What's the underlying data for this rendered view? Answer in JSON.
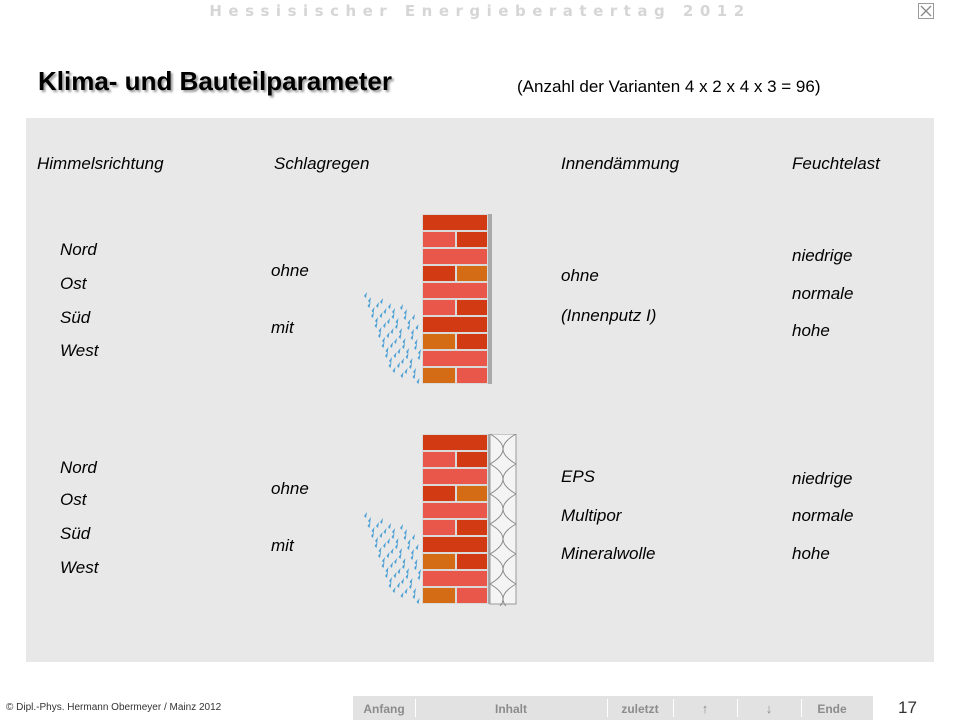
{
  "header": {
    "event_title": "Hessisischer Energieberatertag 2012",
    "close_icon": "close-x-icon"
  },
  "slide": {
    "title": "Klima- und Bauteilparameter",
    "subtitle": "(Anzahl der Varianten 4 x 2 x 4 x 3 = 96)"
  },
  "columns": {
    "himmelsrichtung": "Himmelsrichtung",
    "schlagregen": "Schlagregen",
    "innendaemmung": "Innendämmung",
    "feuchtelast": "Feuchtelast"
  },
  "group_top": {
    "directions": [
      "Nord",
      "Ost",
      "Süd",
      "West"
    ],
    "rain": [
      "ohne",
      "mit"
    ],
    "insulation": [
      "ohne",
      "(Innenputz I)"
    ],
    "moisture": [
      "niedrige",
      "normale",
      "hohe"
    ]
  },
  "group_bottom": {
    "directions": [
      "Nord",
      "Ost",
      "Süd",
      "West"
    ],
    "rain": [
      "ohne",
      "mit"
    ],
    "insulation": [
      "EPS",
      "Multipor",
      "Mineralwolle"
    ],
    "moisture": [
      "niedrige",
      "normale",
      "hohe"
    ]
  },
  "footer": {
    "copyright": "© Dipl.-Phys. Hermann Obermeyer / Mainz 2012",
    "nav": [
      "Anfang",
      "Inhalt",
      "zuletzt",
      "↑",
      "↓",
      "Ende"
    ],
    "page_number": "17"
  },
  "colors": {
    "panel_bg": "#e8e8e8",
    "brick_light": "#e8574a",
    "brick_dark": "#d23a14",
    "brick_orange": "#d46c16",
    "rain_drop": "#4a9fd4",
    "nav_bg": "#e2e2e2",
    "nav_text": "#8c8c8c"
  }
}
